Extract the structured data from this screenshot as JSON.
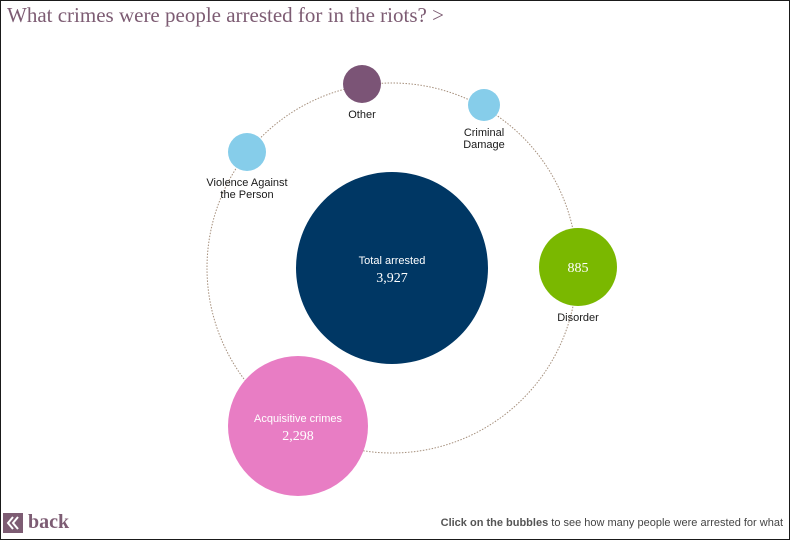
{
  "title": "What crimes were people arrested for in the riots? >",
  "back_label": "back",
  "hint": {
    "bold": "Click on the bubbles",
    "rest": " to see how many people were arrested for what"
  },
  "colors": {
    "title": "#7d5c73",
    "orbit": "#a58f7c"
  },
  "chart_data": {
    "type": "bubble",
    "total": {
      "label": "Total arrested",
      "value_text": "3,927",
      "value": 3927,
      "color": "#003764"
    },
    "categories": [
      {
        "id": "other",
        "lines": [
          "Other"
        ],
        "value": null,
        "color": "#7b5476"
      },
      {
        "id": "criminal-damage",
        "lines": [
          "Criminal",
          "Damage"
        ],
        "value": null,
        "color": "#86cdea"
      },
      {
        "id": "disorder",
        "lines": [
          "Disorder"
        ],
        "value": 885,
        "value_text": "885",
        "color": "#7ab800"
      },
      {
        "id": "acquisitive-crimes",
        "lines": [
          "Acquisitive crimes"
        ],
        "value": 2298,
        "value_text": "2,298",
        "color": "#e87dc4"
      },
      {
        "id": "violence-against-the-person",
        "lines": [
          "Violence Against",
          "the Person"
        ],
        "value": null,
        "color": "#86cdea"
      }
    ]
  }
}
